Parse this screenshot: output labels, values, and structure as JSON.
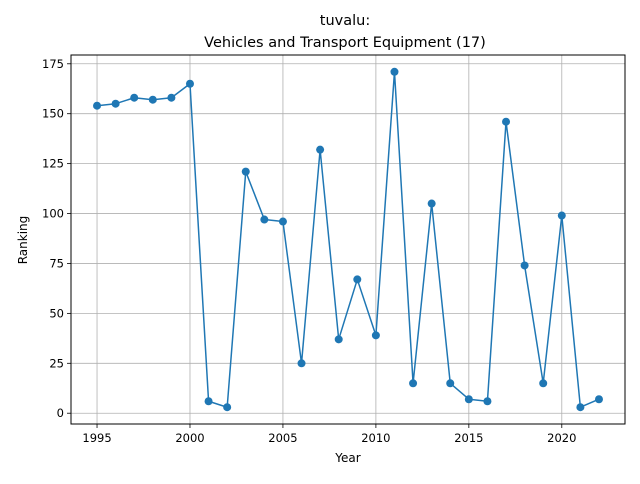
{
  "chart_data": {
    "type": "line",
    "title_line1": "tuvalu:",
    "title_line2": "Vehicles and Transport Equipment (17)",
    "xlabel": "Year",
    "ylabel": "Ranking",
    "xlim": [
      1993.6,
      2023.4
    ],
    "ylim": [
      -5.4,
      179.4
    ],
    "xticks": [
      1995,
      2000,
      2005,
      2010,
      2015,
      2020
    ],
    "yticks": [
      0,
      25,
      50,
      75,
      100,
      125,
      150,
      175
    ],
    "grid": true,
    "series": [
      {
        "color": "#1f77b4",
        "x": [
          1995,
          1996,
          1997,
          1998,
          1999,
          2000,
          2001,
          2002,
          2003,
          2004,
          2005,
          2006,
          2007,
          2008,
          2009,
          2010,
          2011,
          2012,
          2013,
          2014,
          2015,
          2016,
          2017,
          2018,
          2019,
          2020,
          2021,
          2022
        ],
        "y": [
          154,
          155,
          158,
          157,
          158,
          165,
          6,
          3,
          121,
          97,
          96,
          25,
          132,
          37,
          67,
          39,
          171,
          15,
          105,
          15,
          7,
          6,
          146,
          74,
          15,
          99,
          3,
          7
        ]
      }
    ]
  }
}
